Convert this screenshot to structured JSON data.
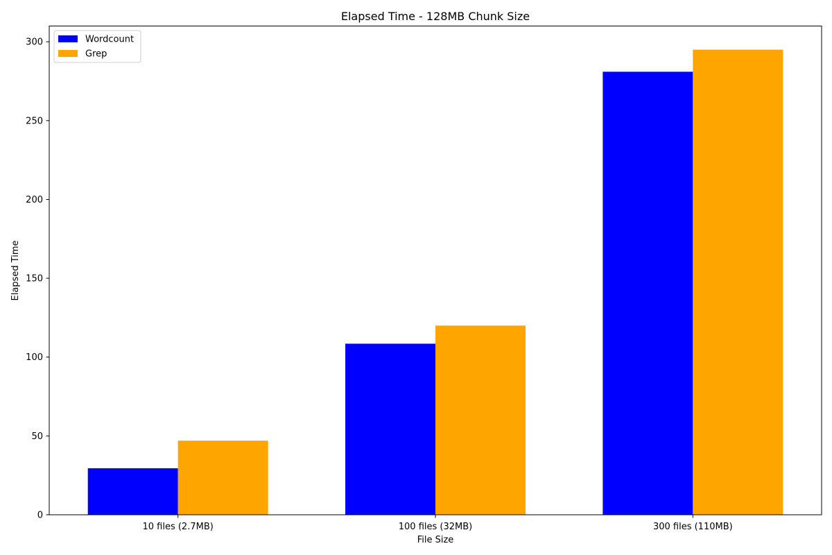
{
  "chart_data": {
    "type": "bar",
    "title": "Elapsed Time - 128MB Chunk Size",
    "xlabel": "File Size",
    "ylabel": "Elapsed Time",
    "categories": [
      "10 files (2.7MB)",
      "100 files (32MB)",
      "300 files (110MB)"
    ],
    "series": [
      {
        "name": "Wordcount",
        "color": "#0000ff",
        "values": [
          29.5,
          108.5,
          281
        ]
      },
      {
        "name": "Grep",
        "color": "#ffa500",
        "values": [
          47,
          120,
          295
        ]
      }
    ],
    "ylim": [
      0,
      310
    ],
    "yticks": [
      0,
      50,
      100,
      150,
      200,
      250,
      300
    ],
    "legend": "top-left",
    "grid": false
  }
}
